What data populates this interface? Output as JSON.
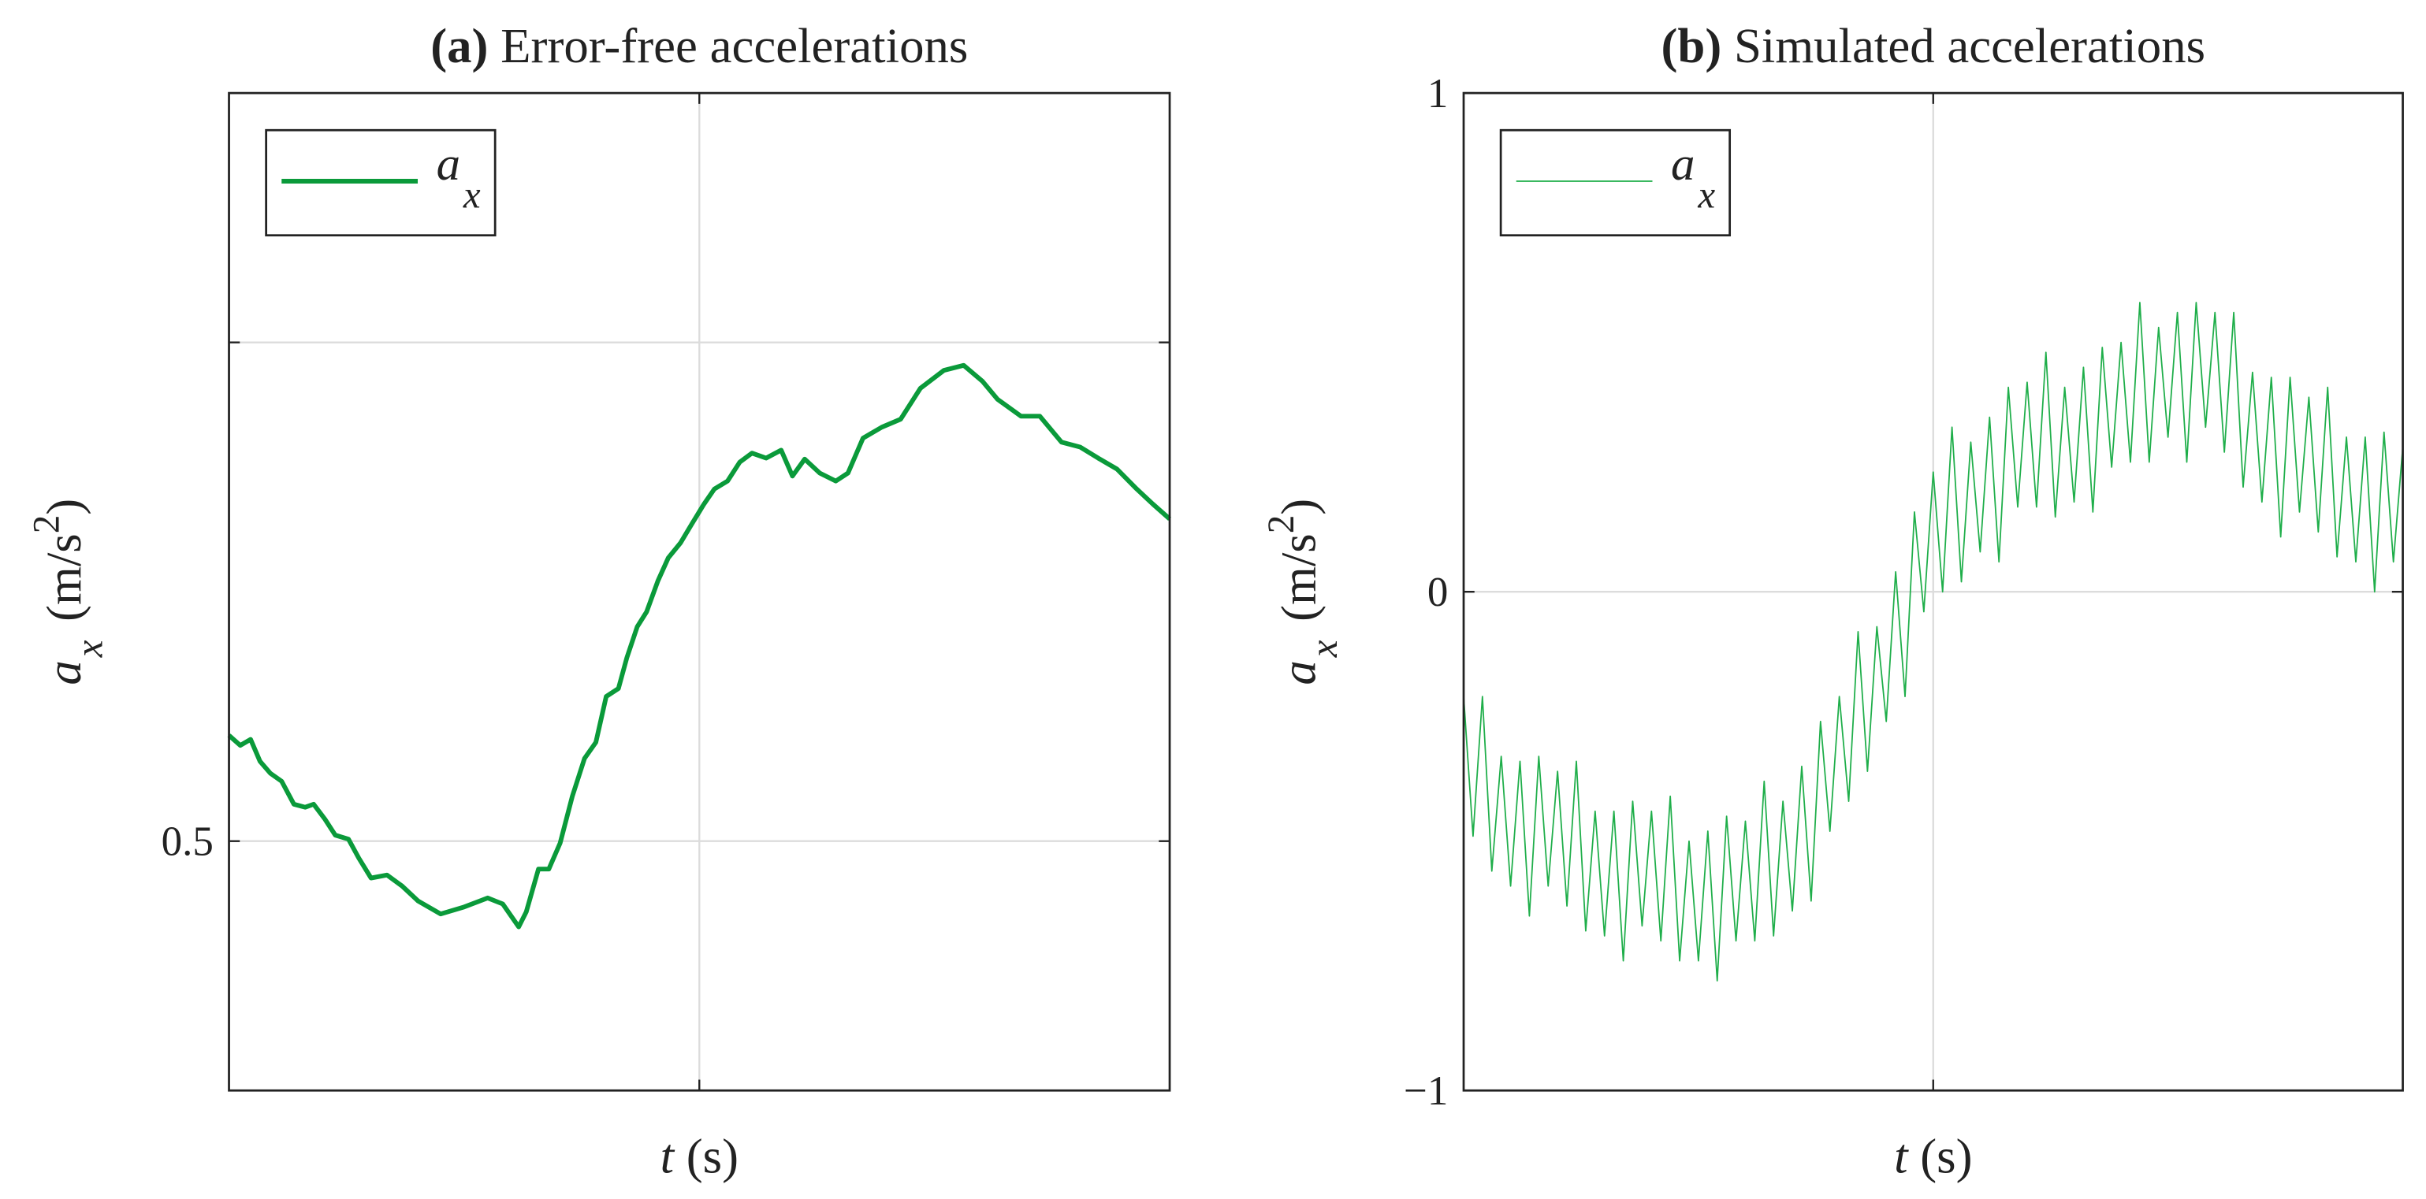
{
  "chart_data": [
    {
      "type": "line",
      "panel": "(a)",
      "title": "Error-free accelerations",
      "ylabel_parts": [
        "a",
        "x",
        "(m/s",
        "2",
        ")"
      ],
      "xlabel_parts": [
        "t",
        "(s)"
      ],
      "xlim": [
        0,
        1
      ],
      "xticks_unlabeled": [
        0.5
      ],
      "ylim": [
        0.25,
        1.25
      ],
      "yticks": [
        0.5
      ],
      "yticks_unlabeled": [
        1
      ],
      "grid": true,
      "legend": "top-left",
      "x": [
        0,
        0.012,
        0.023,
        0.033,
        0.044,
        0.056,
        0.069,
        0.081,
        0.09,
        0.102,
        0.113,
        0.127,
        0.138,
        0.151,
        0.168,
        0.184,
        0.201,
        0.225,
        0.25,
        0.275,
        0.291,
        0.308,
        0.316,
        0.329,
        0.34,
        0.352,
        0.365,
        0.378,
        0.39,
        0.401,
        0.414,
        0.423,
        0.434,
        0.444,
        0.456,
        0.467,
        0.48,
        0.492,
        0.505,
        0.516,
        0.53,
        0.543,
        0.556,
        0.571,
        0.587,
        0.599,
        0.612,
        0.628,
        0.645,
        0.658,
        0.674,
        0.694,
        0.714,
        0.735,
        0.76,
        0.781,
        0.801,
        0.817,
        0.842,
        0.862,
        0.885,
        0.905,
        0.924,
        0.944,
        0.965,
        0.982,
        1
      ],
      "series": [
        {
          "name": "a",
          "subscript": "x",
          "color": "#0a9a3a",
          "width": 3,
          "values": [
            0.606,
            0.596,
            0.602,
            0.58,
            0.568,
            0.56,
            0.537,
            0.534,
            0.537,
            0.522,
            0.506,
            0.502,
            0.483,
            0.463,
            0.466,
            0.455,
            0.44,
            0.427,
            0.434,
            0.443,
            0.437,
            0.414,
            0.429,
            0.472,
            0.472,
            0.498,
            0.545,
            0.583,
            0.599,
            0.645,
            0.653,
            0.684,
            0.715,
            0.73,
            0.761,
            0.784,
            0.799,
            0.818,
            0.838,
            0.853,
            0.861,
            0.88,
            0.889,
            0.884,
            0.892,
            0.866,
            0.883,
            0.869,
            0.861,
            0.869,
            0.904,
            0.915,
            0.923,
            0.954,
            0.972,
            0.977,
            0.961,
            0.943,
            0.926,
            0.926,
            0.9,
            0.895,
            0.884,
            0.873,
            0.853,
            0.838,
            0.823
          ]
        }
      ]
    },
    {
      "type": "line",
      "panel": "(b)",
      "title": "Simulated accelerations",
      "ylabel_parts": [
        "a",
        "x",
        "(m/s",
        "2",
        ")"
      ],
      "xlabel_parts": [
        "t",
        "(s)"
      ],
      "xlim": [
        0,
        1
      ],
      "xticks_unlabeled": [
        0.5
      ],
      "ylim": [
        -1,
        1
      ],
      "yticks": [
        {
          "value": -1,
          "label": "−1"
        },
        0,
        1
      ],
      "grid": true,
      "legend": "top-left",
      "x": [
        0,
        0.01,
        0.02,
        0.03,
        0.04,
        0.05,
        0.06,
        0.07,
        0.08,
        0.09,
        0.1,
        0.11,
        0.12,
        0.13,
        0.14,
        0.15,
        0.16,
        0.17,
        0.18,
        0.19,
        0.2,
        0.21,
        0.22,
        0.23,
        0.24,
        0.25,
        0.26,
        0.27,
        0.28,
        0.29,
        0.3,
        0.31,
        0.32,
        0.33,
        0.34,
        0.35,
        0.36,
        0.37,
        0.38,
        0.39,
        0.4,
        0.41,
        0.42,
        0.43,
        0.44,
        0.45,
        0.46,
        0.47,
        0.48,
        0.49,
        0.5,
        0.51,
        0.52,
        0.53,
        0.54,
        0.55,
        0.56,
        0.57,
        0.58,
        0.59,
        0.6,
        0.61,
        0.62,
        0.63,
        0.64,
        0.65,
        0.66,
        0.67,
        0.68,
        0.69,
        0.7,
        0.71,
        0.72,
        0.73,
        0.74,
        0.75,
        0.76,
        0.77,
        0.78,
        0.79,
        0.8,
        0.81,
        0.82,
        0.83,
        0.84,
        0.85,
        0.86,
        0.87,
        0.88,
        0.89,
        0.9,
        0.91,
        0.92,
        0.93,
        0.94,
        0.95,
        0.96,
        0.97,
        0.98,
        0.99,
        1
      ],
      "series": [
        {
          "name": "a",
          "subscript": "x",
          "color": "#1fae4a",
          "width": 0.9,
          "values": [
            -0.21,
            -0.49,
            -0.21,
            -0.56,
            -0.33,
            -0.59,
            -0.34,
            -0.65,
            -0.33,
            -0.59,
            -0.36,
            -0.63,
            -0.34,
            -0.68,
            -0.44,
            -0.69,
            -0.44,
            -0.74,
            -0.42,
            -0.67,
            -0.44,
            -0.7,
            -0.41,
            -0.74,
            -0.5,
            -0.74,
            -0.48,
            -0.78,
            -0.45,
            -0.7,
            -0.46,
            -0.7,
            -0.38,
            -0.69,
            -0.42,
            -0.64,
            -0.35,
            -0.62,
            -0.26,
            -0.48,
            -0.21,
            -0.42,
            -0.08,
            -0.36,
            -0.07,
            -0.26,
            0.04,
            -0.21,
            0.16,
            -0.04,
            0.24,
            0,
            0.33,
            0.02,
            0.3,
            0.08,
            0.35,
            0.06,
            0.41,
            0.17,
            0.42,
            0.17,
            0.48,
            0.15,
            0.41,
            0.18,
            0.45,
            0.16,
            0.49,
            0.25,
            0.5,
            0.26,
            0.58,
            0.26,
            0.53,
            0.31,
            0.56,
            0.26,
            0.58,
            0.33,
            0.56,
            0.28,
            0.56,
            0.21,
            0.44,
            0.18,
            0.43,
            0.11,
            0.43,
            0.16,
            0.39,
            0.12,
            0.41,
            0.07,
            0.31,
            0.06,
            0.31,
            0,
            0.32,
            0.06,
            0.29
          ]
        }
      ]
    }
  ]
}
